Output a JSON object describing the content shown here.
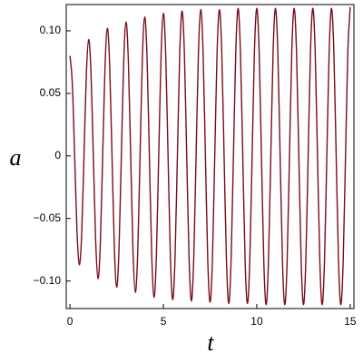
{
  "chart_data": {
    "type": "line",
    "x_label": "t",
    "y_label": "a",
    "x": [
      0,
      0.125,
      0.25,
      0.375,
      0.5,
      0.625,
      0.75,
      0.875,
      1,
      1.125,
      1.25,
      1.375,
      1.5,
      1.625,
      1.75,
      1.875,
      2,
      2.125,
      2.25,
      2.375,
      2.5,
      2.625,
      2.75,
      2.875,
      3,
      3.125,
      3.25,
      3.375,
      3.5,
      3.625,
      3.75,
      3.875,
      4,
      4.125,
      4.25,
      4.375,
      4.5,
      4.625,
      4.75,
      4.875,
      5,
      5.125,
      5.25,
      5.375,
      5.5,
      5.625,
      5.75,
      5.875,
      6,
      6.125,
      6.25,
      6.375,
      6.5,
      6.625,
      6.75,
      6.875,
      7,
      7.125,
      7.25,
      7.375,
      7.5,
      7.625,
      7.75,
      7.875,
      8,
      8.125,
      8.25,
      8.375,
      8.5,
      8.625,
      8.75,
      8.875,
      9,
      9.125,
      9.25,
      9.375,
      9.5,
      9.625,
      9.75,
      9.875,
      10,
      10.125,
      10.25,
      10.375,
      10.5,
      10.625,
      10.75,
      10.875,
      11,
      11.125,
      11.25,
      11.375,
      11.5,
      11.625,
      11.75,
      11.875,
      12,
      12.125,
      12.25,
      12.375,
      12.5,
      12.625,
      12.75,
      12.875,
      13,
      13.125,
      13.25,
      13.375,
      13.5,
      13.625,
      13.75,
      13.875,
      14,
      14.125,
      14.25,
      14.375,
      14.5,
      14.625,
      14.75,
      14.875,
      15
    ],
    "series": [
      {
        "color": "#7b0c1c",
        "values": [
          0.08,
          0.058,
          0,
          -0.06,
          -0.087,
          -0.063,
          0,
          0.065,
          0.093,
          0.067,
          0,
          -0.068,
          -0.098,
          -0.07,
          0,
          0.071,
          0.102,
          0.072,
          0,
          -0.073,
          -0.105,
          -0.074,
          0,
          0.075,
          0.107,
          0.076,
          0,
          -0.077,
          -0.109,
          -0.078,
          0,
          0.078,
          0.111,
          0.079,
          0,
          -0.079,
          -0.113,
          -0.08,
          0,
          0.08,
          0.114,
          0.081,
          0,
          -0.081,
          -0.115,
          -0.081,
          0,
          0.082,
          0.116,
          0.082,
          0,
          -0.082,
          -0.116,
          -0.082,
          0,
          0.082,
          0.117,
          0.083,
          0,
          -0.083,
          -0.117,
          -0.083,
          0,
          0.083,
          0.117,
          0.083,
          0,
          -0.083,
          -0.118,
          -0.083,
          0,
          0.083,
          0.118,
          0.083,
          0,
          -0.084,
          -0.118,
          -0.084,
          0,
          0.084,
          0.118,
          0.084,
          0,
          -0.084,
          -0.119,
          -0.084,
          0,
          0.084,
          0.118,
          0.084,
          0,
          -0.084,
          -0.119,
          -0.084,
          0,
          0.084,
          0.118,
          0.084,
          0,
          -0.084,
          -0.119,
          -0.084,
          0,
          0.084,
          0.118,
          0.084,
          0,
          -0.084,
          -0.119,
          -0.084,
          0,
          0.084,
          0.118,
          0.084,
          0,
          -0.084,
          -0.119,
          -0.084,
          0,
          0.084,
          0.119
        ]
      }
    ],
    "xlim": [
      -0.2,
      15.2
    ],
    "xticks": [
      0,
      5,
      10,
      15
    ],
    "ylim": [
      -0.122,
      0.121
    ],
    "yticks": [
      {
        "value": -0.1,
        "label": "−0.10"
      },
      {
        "value": -0.05,
        "label": "−0.05"
      },
      0,
      0.05,
      {
        "value": 0.1,
        "label": "0.10"
      }
    ],
    "grid": false
  }
}
